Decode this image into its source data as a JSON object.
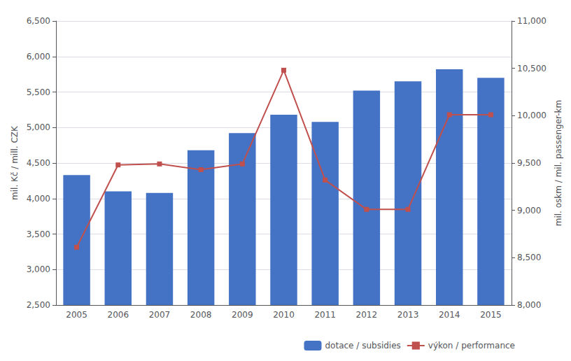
{
  "chart_data": {
    "type": "bar",
    "categories": [
      "2005",
      "2006",
      "2007",
      "2008",
      "2009",
      "2010",
      "2011",
      "2012",
      "2013",
      "2014",
      "2015"
    ],
    "series": [
      {
        "name": "dotace / subsidies",
        "type": "bar",
        "color": "#4472C4",
        "values": [
          4330,
          4100,
          4080,
          4680,
          4920,
          5180,
          5080,
          5520,
          5650,
          5820,
          5700
        ]
      },
      {
        "name": "výkon / performance",
        "type": "line",
        "color": "#C0504D",
        "marker": "square",
        "axis": "y2",
        "values": [
          8610,
          9480,
          9490,
          9430,
          9490,
          10480,
          9320,
          9010,
          9010,
          10010,
          10010
        ]
      }
    ],
    "ylabel": "mil. Kč / mill. CZK",
    "y2label": "mil. oskm / mil. passenger-km",
    "ylim": [
      2500,
      6500
    ],
    "yticks": [
      2500,
      3000,
      3500,
      4000,
      4500,
      5000,
      5500,
      6000,
      6500
    ],
    "y2lim": [
      8000,
      11000
    ],
    "y2ticks": [
      8000,
      8500,
      9000,
      9500,
      10000,
      10500,
      11000
    ],
    "grid": true,
    "legend": "lower right"
  }
}
